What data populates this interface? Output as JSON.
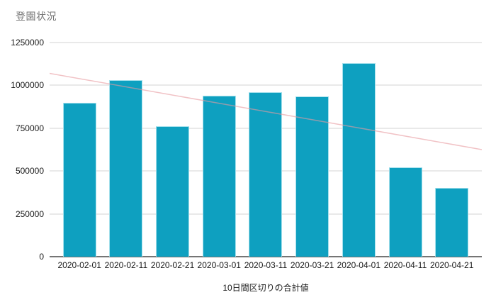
{
  "title": "登園状況",
  "colors": {
    "bar": "#0ea0c0",
    "bar_border": "#a5e0ec",
    "trendline": "#e89aa0",
    "grid": "#e9e9e9",
    "axis": "#757575",
    "title_text": "#757575",
    "tick_text": "#1a1a1a"
  },
  "chart_data": {
    "type": "bar",
    "title": "登園状況",
    "categories": [
      "2020-02-01",
      "2020-02-11",
      "2020-02-21",
      "2020-03-01",
      "2020-03-11",
      "2020-03-21",
      "2020-04-01",
      "2020-04-11",
      "2020-04-21"
    ],
    "values": [
      900000,
      1030000,
      760000,
      940000,
      960000,
      935000,
      1130000,
      520000,
      400000
    ],
    "xlabel": "10日間区切りの合計値",
    "ylabel": "",
    "ylim": [
      0,
      1250000
    ],
    "yticks": [
      0,
      250000,
      500000,
      750000,
      1000000,
      1250000
    ],
    "grid": "horizontal",
    "legend": "none",
    "bar_series_name": "登園状況",
    "trendline": {
      "type": "linear",
      "start_value": 1070000,
      "end_value": 625000
    }
  }
}
